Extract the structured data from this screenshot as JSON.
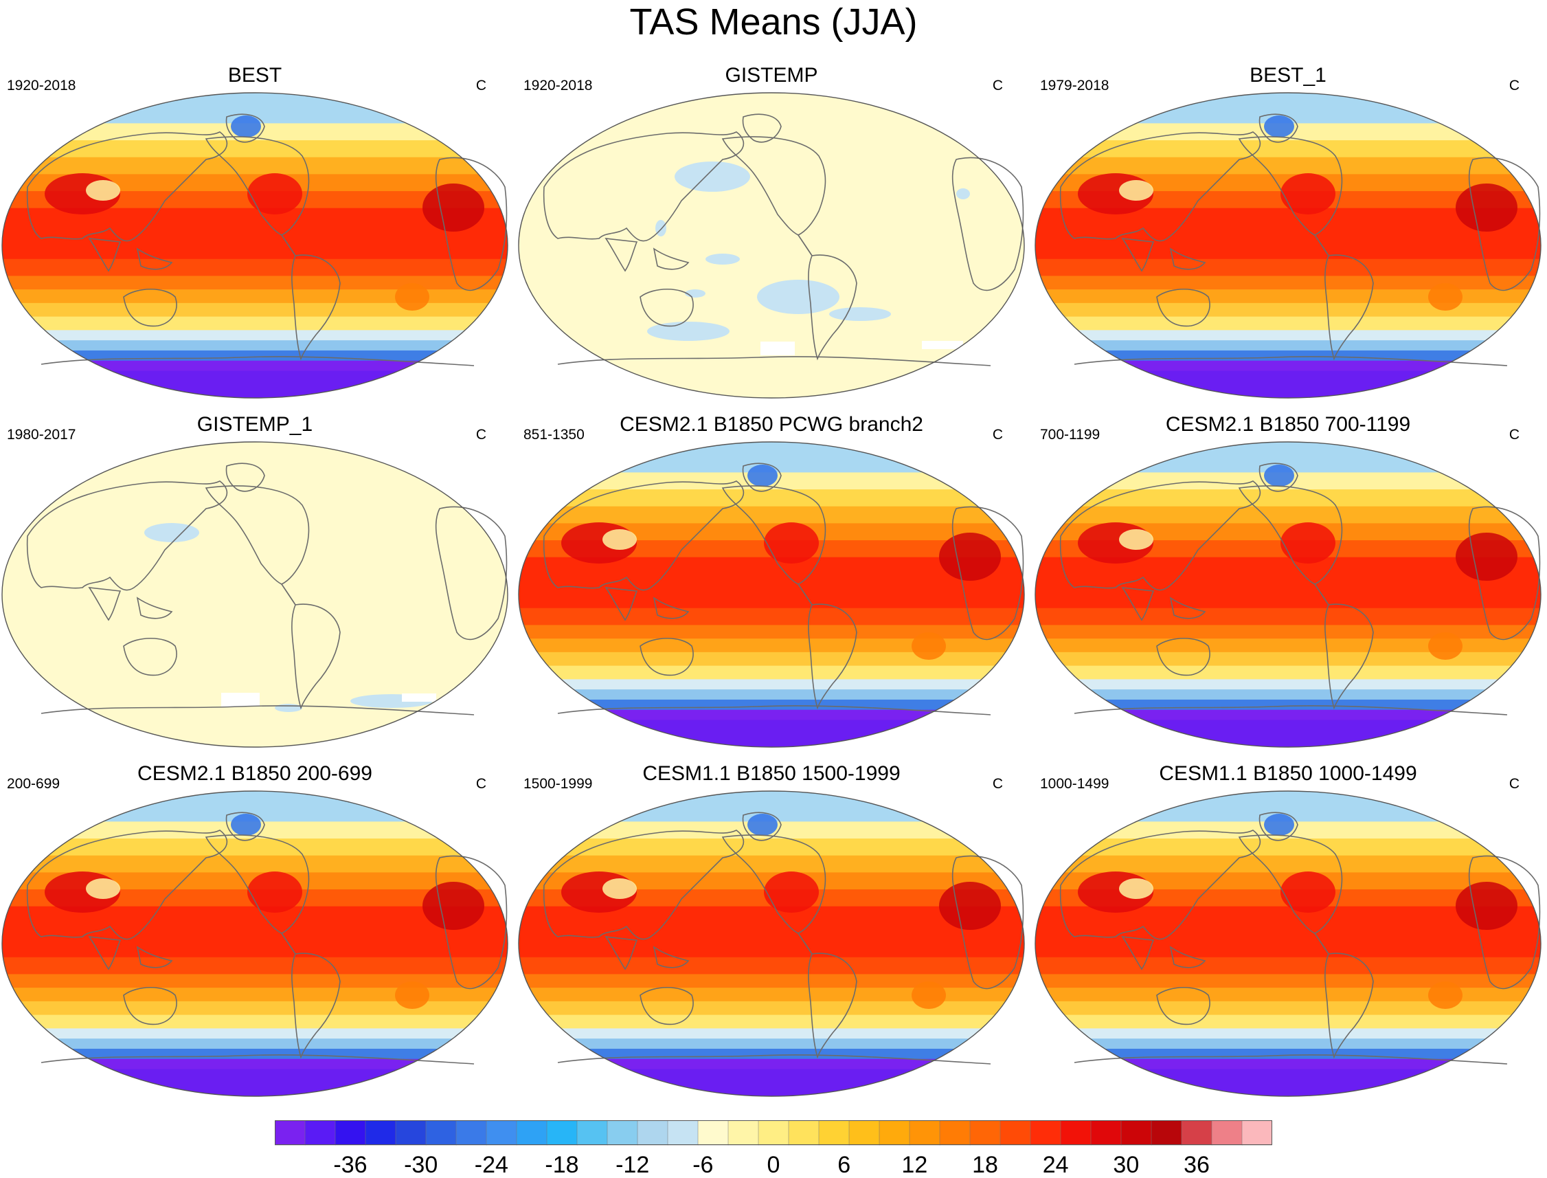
{
  "title": "TAS Means (JJA)",
  "units_label": "C",
  "panels": [
    {
      "title": "BEST",
      "period": "1920-2018",
      "pattern": "full"
    },
    {
      "title": "GISTEMP",
      "period": "1920-2018",
      "pattern": "anomaly"
    },
    {
      "title": "BEST_1",
      "period": "1979-2018",
      "pattern": "full"
    },
    {
      "title": "GISTEMP_1",
      "period": "1980-2017",
      "pattern": "anomaly"
    },
    {
      "title": "CESM2.1 B1850 PCWG branch2",
      "period": "851-1350",
      "pattern": "full"
    },
    {
      "title": "CESM2.1 B1850 700-1199",
      "period": "700-1199",
      "pattern": "full"
    },
    {
      "title": "CESM2.1 B1850 200-699",
      "period": "200-699",
      "pattern": "full"
    },
    {
      "title": "CESM1.1 B1850 1500-1999",
      "period": "1500-1999",
      "pattern": "full"
    },
    {
      "title": "CESM1.1 B1850 1000-1499",
      "period": "1000-1499",
      "pattern": "full"
    }
  ],
  "colorbar": {
    "ticks": [
      "-36",
      "-30",
      "-24",
      "-18",
      "-12",
      "-6",
      "0",
      "6",
      "12",
      "18",
      "24",
      "30",
      "36"
    ],
    "colors": [
      "#7a22f0",
      "#5a1bf5",
      "#3412f0",
      "#1f2ae8",
      "#2646dd",
      "#2e62e2",
      "#3a7ae8",
      "#3f8ff0",
      "#2ea2f5",
      "#27b5f7",
      "#56c2f2",
      "#88cdef",
      "#aed6ee",
      "#c6e3f3",
      "#fffacd",
      "#fff5a8",
      "#ffee84",
      "#ffe25c",
      "#ffd233",
      "#ffbf1a",
      "#ffaa0c",
      "#ff9407",
      "#ff7c05",
      "#ff6606",
      "#ff4b06",
      "#ff2d08",
      "#f21208",
      "#e0080a",
      "#cc0508",
      "#b8060a",
      "#d64048",
      "#ee8088",
      "#fbb8bc"
    ]
  }
}
